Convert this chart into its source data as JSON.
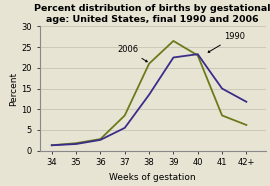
{
  "title": "Percent distribution of births by gestational\nage: United States, final 1990 and 2006",
  "xlabel": "Weeks of gestation",
  "ylabel": "Percent",
  "xlim": [
    33.5,
    42.8
  ],
  "ylim": [
    0,
    30
  ],
  "xticks": [
    "34",
    "35",
    "36",
    "37",
    "38",
    "39",
    "40",
    "41",
    "42+"
  ],
  "xtick_vals": [
    34,
    35,
    36,
    37,
    38,
    39,
    40,
    41,
    42
  ],
  "yticks": [
    0,
    5,
    10,
    15,
    20,
    25,
    30
  ],
  "weeks": [
    34,
    35,
    36,
    37,
    38,
    39,
    40,
    41,
    42
  ],
  "data_2006": [
    1.3,
    1.8,
    2.8,
    8.5,
    21.0,
    26.5,
    23.0,
    8.5,
    6.2
  ],
  "data_1990": [
    1.3,
    1.6,
    2.6,
    5.5,
    13.5,
    22.5,
    23.3,
    15.0,
    11.8
  ],
  "color_2006": "#6b7a1a",
  "color_1990": "#3a2d8a",
  "title_fontsize": 6.8,
  "axis_label_fontsize": 6.5,
  "tick_fontsize": 6.0,
  "annotation_fontsize": 6.0,
  "background_color": "#e8e4d4",
  "grid_color": "#c8c4b4"
}
